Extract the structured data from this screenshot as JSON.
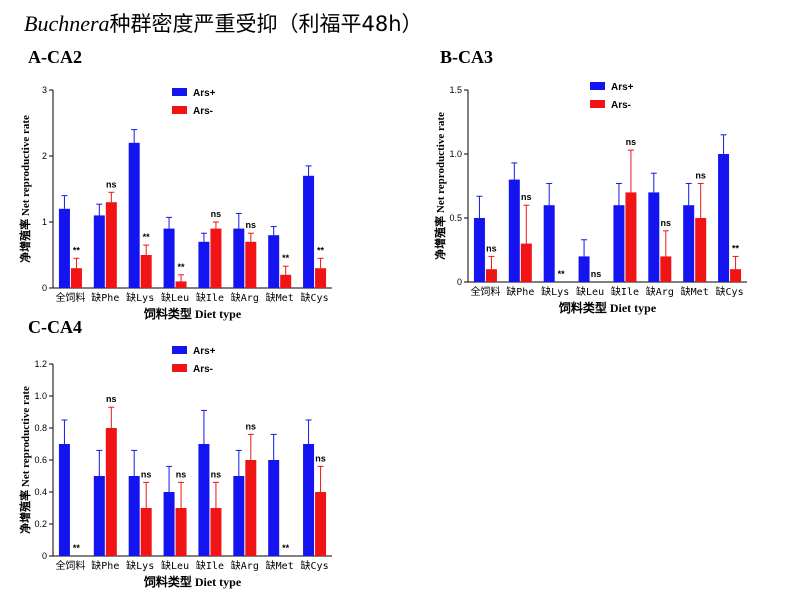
{
  "title": {
    "italic": "Buchnera",
    "rest": "种群密度严重受抑（利福平48h）"
  },
  "chart_data": [
    {
      "type": "bar",
      "label": "A-CA2",
      "ylabel": "净增殖率 Net reproductive rate",
      "xlabel": "饲料类型  Diet type",
      "ylim": [
        0,
        3
      ],
      "yticks": [
        "0",
        "1",
        "2",
        "3"
      ],
      "categories": [
        "全饲料",
        "缺Phe",
        "缺Lys",
        "缺Leu",
        "缺Ile",
        "缺Arg",
        "缺Met",
        "缺Cys"
      ],
      "series": [
        {
          "name": "Ars+",
          "color": "#1414f0",
          "values": [
            1.2,
            1.1,
            2.2,
            0.9,
            0.7,
            0.9,
            0.8,
            1.7
          ],
          "errors": [
            0.2,
            0.17,
            0.2,
            0.17,
            0.13,
            0.23,
            0.13,
            0.15
          ]
        },
        {
          "name": "Ars-",
          "color": "#f01414",
          "values": [
            0.3,
            1.3,
            0.5,
            0.1,
            0.9,
            0.7,
            0.2,
            0.3
          ],
          "errors": [
            0.15,
            0.15,
            0.15,
            0.1,
            0.1,
            0.13,
            0.13,
            0.15
          ]
        }
      ],
      "significance": [
        "**",
        "ns",
        "**",
        "**",
        "ns",
        "ns",
        "**",
        "**"
      ]
    },
    {
      "type": "bar",
      "label": "B-CA3",
      "ylabel": "净增殖率 Net reproductive rate",
      "xlabel": "饲料类型  Diet type",
      "ylim": [
        0,
        1.5
      ],
      "yticks": [
        "0",
        "0.5",
        "1.0",
        "1.5"
      ],
      "categories": [
        "全饲料",
        "缺Phe",
        "缺Lys",
        "缺Leu",
        "缺Ile",
        "缺Arg",
        "缺Met",
        "缺Cys"
      ],
      "series": [
        {
          "name": "Ars+",
          "color": "#1414f0",
          "values": [
            0.5,
            0.8,
            0.6,
            0.2,
            0.6,
            0.7,
            0.6,
            1.0
          ],
          "errors": [
            0.17,
            0.13,
            0.17,
            0.13,
            0.17,
            0.15,
            0.17,
            0.15
          ]
        },
        {
          "name": "Ars-",
          "color": "#f01414",
          "values": [
            0.1,
            0.3,
            0.0,
            0.0,
            0.7,
            0.2,
            0.5,
            0.1
          ],
          "errors": [
            0.1,
            0.3,
            0.0,
            0.0,
            0.33,
            0.2,
            0.27,
            0.1
          ]
        }
      ],
      "significance": [
        "ns",
        "ns",
        "**",
        "ns",
        "ns",
        "ns",
        "ns",
        "**"
      ]
    },
    {
      "type": "bar",
      "label": "C-CA4",
      "ylabel": "净增殖率 Net reproductive rate",
      "xlabel": "饲料类型  Diet type",
      "ylim": [
        0,
        1.2
      ],
      "yticks": [
        "0",
        "0.2",
        "0.4",
        "0.6",
        "0.8",
        "1.0",
        "1.2"
      ],
      "categories": [
        "全饲料",
        "缺Phe",
        "缺Lys",
        "缺Leu",
        "缺Ile",
        "缺Arg",
        "缺Met",
        "缺Cys"
      ],
      "series": [
        {
          "name": "Ars+",
          "color": "#1414f0",
          "values": [
            0.7,
            0.5,
            0.5,
            0.4,
            0.7,
            0.5,
            0.6,
            0.7
          ],
          "errors": [
            0.15,
            0.16,
            0.16,
            0.16,
            0.21,
            0.16,
            0.16,
            0.15
          ]
        },
        {
          "name": "Ars-",
          "color": "#f01414",
          "values": [
            0.0,
            0.8,
            0.3,
            0.3,
            0.3,
            0.6,
            0.0,
            0.4
          ],
          "errors": [
            0.0,
            0.13,
            0.16,
            0.16,
            0.16,
            0.16,
            0.0,
            0.16
          ]
        }
      ],
      "significance": [
        "**",
        "ns",
        "ns",
        "ns",
        "ns",
        "ns",
        "**",
        "ns"
      ]
    }
  ]
}
